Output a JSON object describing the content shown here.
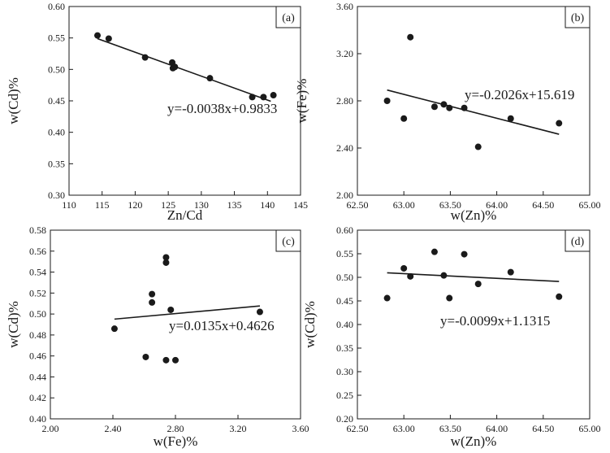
{
  "chart_data": [
    {
      "panel": "(a)",
      "type": "scatter",
      "xlabel": "Zn/Cd",
      "ylabel": "w(Cd)%",
      "xlim": [
        110,
        145
      ],
      "ylim": [
        0.3,
        0.6
      ],
      "xticks": [
        "110",
        "115",
        "120",
        "125",
        "130",
        "135",
        "140",
        "145"
      ],
      "yticks": [
        "0.30",
        "0.35",
        "0.40",
        "0.45",
        "0.50",
        "0.55",
        "0.60"
      ],
      "points": [
        {
          "x": 114.3,
          "y": 0.554
        },
        {
          "x": 116.0,
          "y": 0.549
        },
        {
          "x": 121.5,
          "y": 0.519
        },
        {
          "x": 125.6,
          "y": 0.511
        },
        {
          "x": 125.7,
          "y": 0.502
        },
        {
          "x": 126.0,
          "y": 0.504
        },
        {
          "x": 131.3,
          "y": 0.486
        },
        {
          "x": 137.7,
          "y": 0.456
        },
        {
          "x": 139.4,
          "y": 0.456
        },
        {
          "x": 140.9,
          "y": 0.459
        }
      ],
      "fit": {
        "slope": -0.0038,
        "intercept": 0.9833,
        "x_range": [
          114.3,
          140.5
        ]
      },
      "equation": "y=-0.0038x+0.9833"
    },
    {
      "panel": "(b)",
      "type": "scatter",
      "xlabel": "w(Zn)%",
      "ylabel": "w(Fe)%",
      "xlim": [
        62.5,
        65.0
      ],
      "ylim": [
        2.0,
        3.6
      ],
      "xticks": [
        "62.50",
        "63.00",
        "63.50",
        "64.00",
        "64.50",
        "65.00"
      ],
      "yticks": [
        "2.00",
        "2.40",
        "2.80",
        "3.20",
        "3.60"
      ],
      "points": [
        {
          "x": 62.82,
          "y": 2.8
        },
        {
          "x": 63.0,
          "y": 2.65
        },
        {
          "x": 63.07,
          "y": 3.34
        },
        {
          "x": 63.33,
          "y": 2.75
        },
        {
          "x": 63.43,
          "y": 2.77
        },
        {
          "x": 63.49,
          "y": 2.74
        },
        {
          "x": 63.65,
          "y": 2.74
        },
        {
          "x": 63.8,
          "y": 2.41
        },
        {
          "x": 64.15,
          "y": 2.65
        },
        {
          "x": 64.67,
          "y": 2.61
        }
      ],
      "fit": {
        "slope": -0.2026,
        "intercept": 15.619,
        "x_range": [
          62.82,
          64.67
        ]
      },
      "equation": "y=-0.2026x+15.619"
    },
    {
      "panel": "(c)",
      "type": "scatter",
      "xlabel": "w(Fe)%",
      "ylabel": "w(Cd)%",
      "xlim": [
        2.0,
        3.6
      ],
      "ylim": [
        0.4,
        0.58
      ],
      "xticks": [
        "2.00",
        "2.40",
        "2.80",
        "3.20",
        "3.60"
      ],
      "yticks": [
        "0.40",
        "0.42",
        "0.44",
        "0.46",
        "0.48",
        "0.50",
        "0.52",
        "0.54",
        "0.56",
        "0.58"
      ],
      "points": [
        {
          "x": 2.41,
          "y": 0.486
        },
        {
          "x": 2.61,
          "y": 0.459
        },
        {
          "x": 2.65,
          "y": 0.519
        },
        {
          "x": 2.65,
          "y": 0.511
        },
        {
          "x": 2.74,
          "y": 0.554
        },
        {
          "x": 2.74,
          "y": 0.549
        },
        {
          "x": 2.74,
          "y": 0.456
        },
        {
          "x": 2.77,
          "y": 0.504
        },
        {
          "x": 2.8,
          "y": 0.456
        },
        {
          "x": 3.34,
          "y": 0.502
        }
      ],
      "fit": {
        "slope": 0.0135,
        "intercept": 0.4626,
        "x_range": [
          2.41,
          3.34
        ]
      },
      "equation": "y=0.0135x+0.4626"
    },
    {
      "panel": "(d)",
      "type": "scatter",
      "xlabel": "w(Zn)%",
      "ylabel": "w(Cd)%",
      "xlim": [
        62.5,
        65.0
      ],
      "ylim": [
        0.2,
        0.6
      ],
      "xticks": [
        "62.50",
        "63.00",
        "63.50",
        "64.00",
        "64.50",
        "65.00"
      ],
      "yticks": [
        "0.20",
        "0.25",
        "0.30",
        "0.35",
        "0.40",
        "0.45",
        "0.50",
        "0.55",
        "0.60"
      ],
      "points": [
        {
          "x": 62.82,
          "y": 0.456
        },
        {
          "x": 63.0,
          "y": 0.519
        },
        {
          "x": 63.07,
          "y": 0.502
        },
        {
          "x": 63.33,
          "y": 0.554
        },
        {
          "x": 63.43,
          "y": 0.504
        },
        {
          "x": 63.49,
          "y": 0.456
        },
        {
          "x": 63.65,
          "y": 0.549
        },
        {
          "x": 63.8,
          "y": 0.486
        },
        {
          "x": 64.15,
          "y": 0.511
        },
        {
          "x": 64.67,
          "y": 0.459
        }
      ],
      "fit": {
        "slope": -0.0099,
        "intercept": 1.1315,
        "x_range": [
          62.82,
          64.67
        ]
      },
      "equation": "y=-0.0099x+1.1315"
    }
  ]
}
